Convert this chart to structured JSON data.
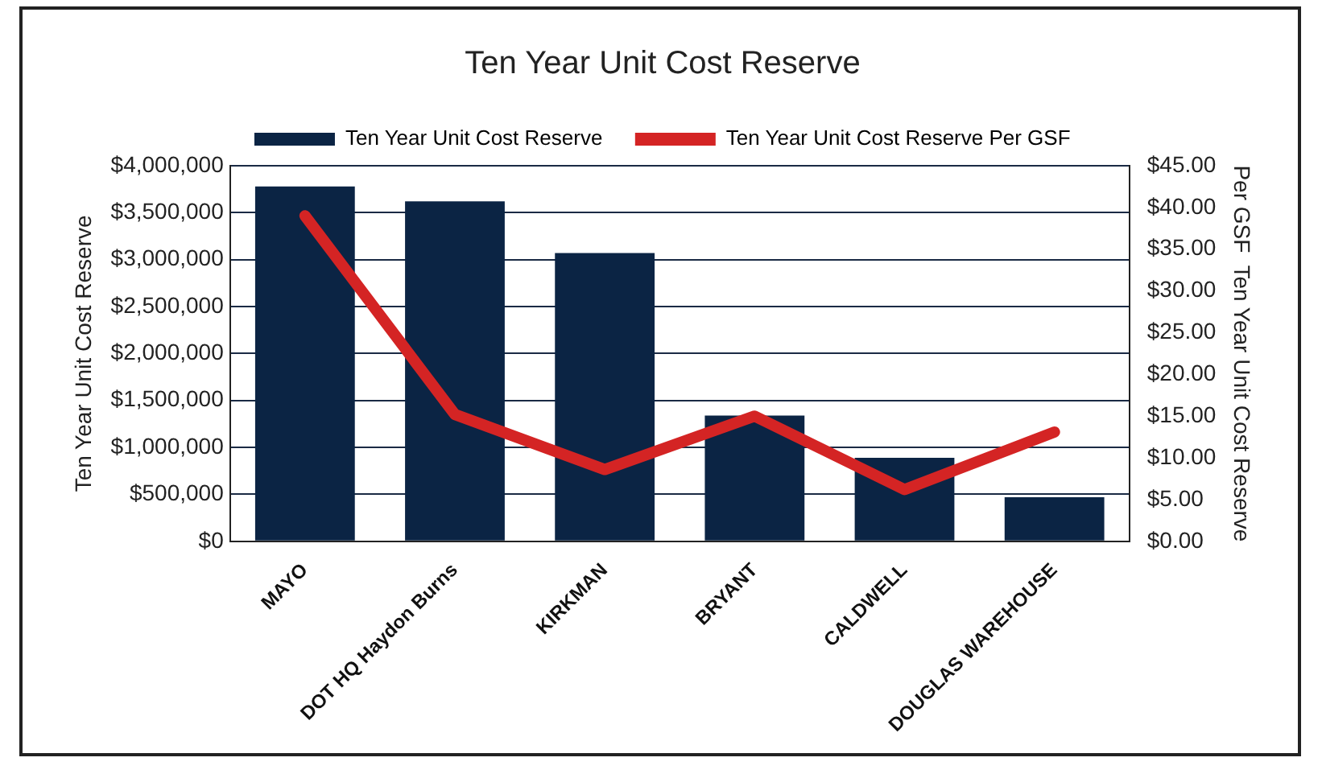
{
  "chart_data": {
    "type": "bar",
    "title": "Ten Year Unit Cost Reserve",
    "categories": [
      "MAYO",
      "DOT HQ Haydon Burns",
      "KIRKMAN",
      "BRYANT",
      "CALDWELL",
      "DOUGLAS WAREHOUSE"
    ],
    "series": [
      {
        "name": "Ten Year Unit Cost Reserve",
        "color": "#0b2444",
        "values": [
          3780000,
          3620000,
          3070000,
          1340000,
          890000,
          470000
        ]
      },
      {
        "name": "Ten Year Unit Cost Reserve Per GSF",
        "type": "line",
        "axis": "y2",
        "color": "#d42424",
        "values": [
          39.0,
          15.2,
          8.6,
          15.0,
          6.2,
          13.1
        ]
      }
    ],
    "ylabel": "Ten Year Unit Cost Reserve",
    "y2label": "Per GSF  Ten Year Unit Cost Reserve",
    "ylim": [
      0,
      4000000
    ],
    "yticks": [
      {
        "value": 0,
        "label": "$0"
      },
      {
        "value": 500000,
        "label": "$500,000"
      },
      {
        "value": 1000000,
        "label": "$1,000,000"
      },
      {
        "value": 1500000,
        "label": "$1,500,000"
      },
      {
        "value": 2000000,
        "label": "$2,000,000"
      },
      {
        "value": 2500000,
        "label": "$2,500,000"
      },
      {
        "value": 3000000,
        "label": "$3,000,000"
      },
      {
        "value": 3500000,
        "label": "$3,500,000"
      },
      {
        "value": 4000000,
        "label": "$4,000,000"
      }
    ],
    "y2lim": [
      0,
      45
    ],
    "y2ticks": [
      {
        "value": 0,
        "label": "$0.00"
      },
      {
        "value": 5,
        "label": "$5.00"
      },
      {
        "value": 10,
        "label": "$10.00"
      },
      {
        "value": 15,
        "label": "$15.00"
      },
      {
        "value": 20,
        "label": "$20.00"
      },
      {
        "value": 25,
        "label": "$25.00"
      },
      {
        "value": 30,
        "label": "$30.00"
      },
      {
        "value": 35,
        "label": "$35.00"
      },
      {
        "value": 40,
        "label": "$40.00"
      },
      {
        "value": 45,
        "label": "$45.00"
      }
    ],
    "grid": "y",
    "legend": "top",
    "marker": "none",
    "line_style": "solid"
  }
}
